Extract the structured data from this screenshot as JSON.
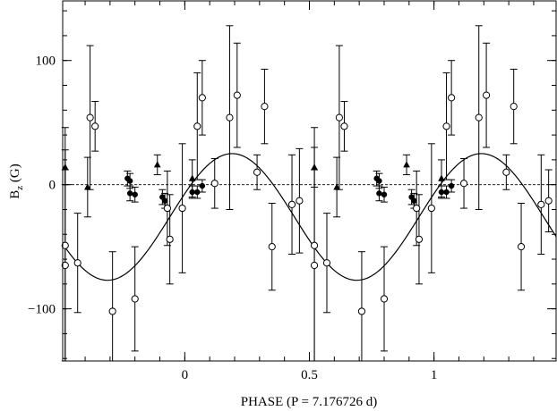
{
  "chart_data": {
    "type": "scatter",
    "title": "",
    "xlabel": "PHASE (P = 7.176726 d)",
    "ylabel_main": "B",
    "ylabel_sub": "z",
    "ylabel_unit": " (G)",
    "xlim": [
      -0.49,
      1.49
    ],
    "ylim": [
      -142,
      148
    ],
    "x_ticks": [
      0,
      0.5,
      1
    ],
    "x_tick_labels": [
      "0",
      "0.5",
      "1"
    ],
    "y_ticks": [
      -100,
      0,
      100
    ],
    "y_tick_labels": [
      "−100",
      "0",
      "100"
    ],
    "x_minor_step": 0.1,
    "y_minor_step": 20,
    "grid": false,
    "zero_line": {
      "y": 0,
      "style": "dashed"
    },
    "fit_curve": {
      "label": "",
      "offset": -26,
      "amplitude": 51,
      "peak_phase": 0.19
    },
    "series": [
      {
        "marker": "open-circle",
        "points": [
          {
            "x": -0.48,
            "y": -49,
            "err": 95
          },
          {
            "x": -0.48,
            "y": -65,
            "err": 77
          },
          {
            "x": -0.43,
            "y": -63,
            "err": 40
          },
          {
            "x": -0.38,
            "y": 54,
            "err": 58
          },
          {
            "x": -0.36,
            "y": 47,
            "err": 20
          },
          {
            "x": -0.29,
            "y": -102,
            "err": 48
          },
          {
            "x": -0.2,
            "y": -92,
            "err": 42
          },
          {
            "x": -0.07,
            "y": -19,
            "err": 30
          },
          {
            "x": -0.06,
            "y": -44,
            "err": 36
          },
          {
            "x": -0.01,
            "y": -19,
            "err": 52
          },
          {
            "x": 0.05,
            "y": 47,
            "err": 43
          },
          {
            "x": 0.07,
            "y": 70,
            "err": 30
          },
          {
            "x": 0.12,
            "y": 1,
            "err": 20
          },
          {
            "x": 0.18,
            "y": 54,
            "err": 74
          },
          {
            "x": 0.21,
            "y": 72,
            "err": 42
          },
          {
            "x": 0.29,
            "y": 10,
            "err": 14
          },
          {
            "x": 0.32,
            "y": 63,
            "err": 30
          },
          {
            "x": 0.35,
            "y": -50,
            "err": 35
          },
          {
            "x": 0.43,
            "y": -16,
            "err": 40
          },
          {
            "x": 0.46,
            "y": -13,
            "err": 42
          },
          {
            "x": 0.52,
            "y": -49,
            "err": 95
          },
          {
            "x": 0.52,
            "y": -65,
            "err": 77
          },
          {
            "x": 0.57,
            "y": -63,
            "err": 40
          },
          {
            "x": 0.62,
            "y": 54,
            "err": 58
          },
          {
            "x": 0.64,
            "y": 47,
            "err": 20
          },
          {
            "x": 0.71,
            "y": -102,
            "err": 48
          },
          {
            "x": 0.8,
            "y": -92,
            "err": 42
          },
          {
            "x": 0.93,
            "y": -19,
            "err": 30
          },
          {
            "x": 0.94,
            "y": -44,
            "err": 36
          },
          {
            "x": 0.99,
            "y": -19,
            "err": 52
          },
          {
            "x": 1.05,
            "y": 47,
            "err": 43
          },
          {
            "x": 1.07,
            "y": 70,
            "err": 30
          },
          {
            "x": 1.12,
            "y": 1,
            "err": 20
          },
          {
            "x": 1.18,
            "y": 54,
            "err": 74
          },
          {
            "x": 1.21,
            "y": 72,
            "err": 42
          },
          {
            "x": 1.29,
            "y": 10,
            "err": 14
          },
          {
            "x": 1.32,
            "y": 63,
            "err": 30
          },
          {
            "x": 1.35,
            "y": -50,
            "err": 35
          },
          {
            "x": 1.43,
            "y": -16,
            "err": 40
          },
          {
            "x": 1.46,
            "y": -13,
            "err": 25
          }
        ]
      },
      {
        "marker": "filled-circle",
        "points": [
          {
            "x": -0.23,
            "y": 5,
            "err": 6
          },
          {
            "x": -0.22,
            "y": 3,
            "err": 6
          },
          {
            "x": -0.22,
            "y": -7,
            "err": 6
          },
          {
            "x": -0.2,
            "y": -8,
            "err": 6
          },
          {
            "x": -0.09,
            "y": -10,
            "err": 6
          },
          {
            "x": -0.08,
            "y": -13,
            "err": 6
          },
          {
            "x": 0.03,
            "y": -6,
            "err": 5
          },
          {
            "x": 0.05,
            "y": -6,
            "err": 5
          },
          {
            "x": 0.07,
            "y": -1,
            "err": 5
          },
          {
            "x": 0.77,
            "y": 5,
            "err": 6
          },
          {
            "x": 0.78,
            "y": 3,
            "err": 6
          },
          {
            "x": 0.78,
            "y": -7,
            "err": 6
          },
          {
            "x": 0.8,
            "y": -8,
            "err": 6
          },
          {
            "x": 0.91,
            "y": -10,
            "err": 6
          },
          {
            "x": 0.92,
            "y": -13,
            "err": 6
          },
          {
            "x": 1.03,
            "y": -6,
            "err": 5
          },
          {
            "x": 1.05,
            "y": -6,
            "err": 5
          },
          {
            "x": 1.07,
            "y": -1,
            "err": 5
          }
        ]
      },
      {
        "marker": "filled-triangle",
        "points": [
          {
            "x": -0.48,
            "y": 14,
            "err": 14
          },
          {
            "x": -0.39,
            "y": -2,
            "err": 24
          },
          {
            "x": -0.11,
            "y": 16,
            "err": 8
          },
          {
            "x": 0.03,
            "y": 5,
            "err": 15
          },
          {
            "x": 0.52,
            "y": 14,
            "err": 16
          },
          {
            "x": 0.61,
            "y": -2,
            "err": 24
          },
          {
            "x": 0.89,
            "y": 16,
            "err": 8
          },
          {
            "x": 1.03,
            "y": 5,
            "err": 15
          }
        ]
      }
    ]
  }
}
